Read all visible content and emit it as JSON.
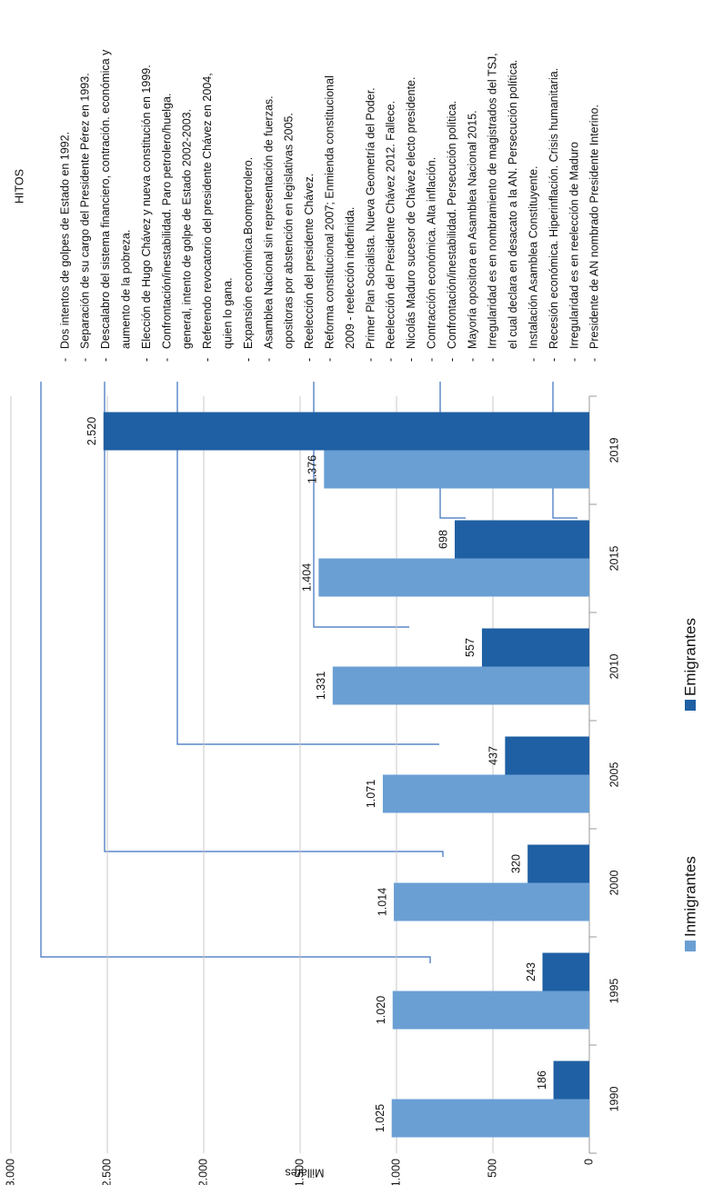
{
  "chart_data": {
    "type": "bar",
    "y_axis_label": "Millares",
    "categories": [
      "1990",
      "1995",
      "2000",
      "2005",
      "2010",
      "2015",
      "2019"
    ],
    "series": [
      {
        "name": "Inmigrantes",
        "color": "#6a9fd4",
        "values": [
          1025,
          1020,
          1014,
          1071,
          1331,
          1404,
          1376
        ],
        "value_labels": [
          "1.025",
          "1.020",
          "1.014",
          "1.071",
          "1.331",
          "1.404",
          "1.376"
        ]
      },
      {
        "name": "Emigrantes",
        "color": "#1f5fa3",
        "values": [
          186,
          243,
          320,
          437,
          557,
          698,
          2520
        ],
        "value_labels": [
          "186",
          "243",
          "320",
          "437",
          "557",
          "698",
          "2.520"
        ]
      }
    ],
    "ylim": [
      0,
      3000
    ],
    "yticks": [
      0,
      500,
      {
        "value": 1000,
        "label": "1.000"
      },
      {
        "value": 1500,
        "label": "1.500"
      },
      {
        "value": 2000,
        "label": "2.000"
      },
      {
        "value": 2500,
        "label": "2.500"
      },
      {
        "value": 3000,
        "label": "3.000"
      }
    ],
    "grid": true,
    "legend": "bottom"
  },
  "hitos": {
    "title": "HITOS",
    "items": [
      [
        "Dos intentos de golpes de Estado en 1992."
      ],
      [
        "Separación de su cargo del Presidente Pérez en 1993."
      ],
      [
        "Descalabro del sistema financiero, contración. económica y",
        "aumento de la pobreza."
      ],
      [
        "Elección de Hugo Chávez y nueva constitución en 1999."
      ],
      [
        "Confrontación/inestabilidad. Paro petrolero/huelga.",
        "general, intento de golpe de Estado 2002-2003."
      ],
      [
        "Referendo revocatorio del presidente Chávez en 2004,",
        "quien lo gana."
      ],
      [
        "Expansión económica.Boompetrolero."
      ],
      [
        "Asamblea Nacional sin representación de fuerzas.",
        "opositoras por abstención en legislativas 2005."
      ],
      [
        "Reelección del presidente Chávez."
      ],
      [
        "Reforma constitucional 2007; Enmienda constitucional",
        "2009 - reelección indefinida."
      ],
      [
        "Primer Plan Socialista. Nueva Geometría del Poder."
      ],
      [
        "Reelección del Presidente Chávez 2012. Fallece."
      ],
      [
        "Nicolás Maduro sucesor de Chávez electo presidente."
      ],
      [
        "Contracción económica. Alta inflación."
      ],
      [
        "Confrontación/inestabilidad. Persecución política."
      ],
      [
        "Mayoría opositora en Asamblea Nacional 2015."
      ],
      [
        "Irregularidad es en nombramiento de magistrados del TSJ,",
        "el cual declara en desacato a la AN. Persecución política."
      ],
      [
        "Instalación Asamblea Constituyente."
      ],
      [
        "Recesión económica. Hiperinflación. Crisis humanitaria."
      ],
      [
        "Irregularidad es en reelección de Maduro"
      ],
      [
        "Presidente de AN nombrado Presidente Interino."
      ]
    ]
  }
}
